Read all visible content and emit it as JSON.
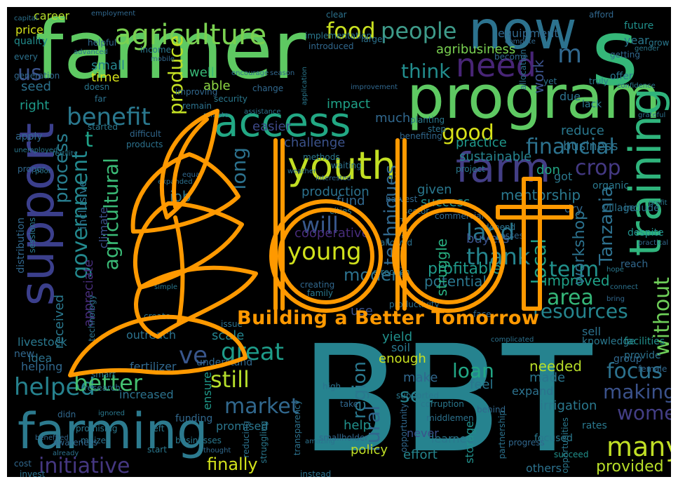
{
  "colors": {
    "background": "#000000",
    "logo_orange": "#ff9900",
    "palette": [
      "#440154",
      "#472d7b",
      "#3b528b",
      "#2c728e",
      "#21918c",
      "#28ae80",
      "#5ec962",
      "#addc30",
      "#fde725"
    ]
  },
  "logo": {
    "name": "bbt-leaf-logo",
    "wordmark": "bbt",
    "tagline": "Building a Better Tomorrow"
  },
  "words": [
    {
      "text": "farmer",
      "color": "#5ec962"
    },
    {
      "text": "s",
      "color": "#35b779"
    },
    {
      "text": "now",
      "color": "#2c728e"
    },
    {
      "text": "program",
      "color": "#5ec962"
    },
    {
      "text": "BBT",
      "color": "#26838f"
    },
    {
      "text": "farming",
      "color": "#2c7a8e"
    },
    {
      "text": "support",
      "color": "#3b3f8c"
    },
    {
      "text": "access",
      "color": "#22a884"
    },
    {
      "text": "youth",
      "color": "#c2df23"
    },
    {
      "text": "farm",
      "color": "#433e85"
    },
    {
      "text": "training",
      "color": "#2fb47c"
    },
    {
      "text": "need",
      "color": "#482576"
    },
    {
      "text": "agriculture",
      "color": "#7ad151"
    },
    {
      "text": "food",
      "color": "#c8e020"
    },
    {
      "text": "people",
      "color": "#3e9b8a"
    },
    {
      "text": "m",
      "color": "#31688e"
    },
    {
      "text": "benefit",
      "color": "#2a788e"
    },
    {
      "text": "t",
      "color": "#1fa187"
    },
    {
      "text": "good",
      "color": "#d8e219"
    },
    {
      "text": "financial",
      "color": "#2c728e"
    },
    {
      "text": "crop",
      "color": "#443983"
    },
    {
      "text": "think",
      "color": "#228d8d"
    },
    {
      "text": "us",
      "color": "#3b528b"
    },
    {
      "text": "produce",
      "color": "#c2df23"
    },
    {
      "text": "young",
      "color": "#d0e11c"
    },
    {
      "text": "thank",
      "color": "#25858e"
    },
    {
      "text": "will",
      "color": "#38588c"
    },
    {
      "text": "land",
      "color": "#2a788e"
    },
    {
      "text": "government",
      "color": "#23898e"
    },
    {
      "text": "agricultural",
      "color": "#3aba76"
    },
    {
      "text": "process",
      "color": "#287d8e"
    },
    {
      "text": "long",
      "color": "#2c728e"
    },
    {
      "text": "techniques",
      "color": "#31688e"
    },
    {
      "text": "local",
      "color": "#1fa188"
    },
    {
      "text": "Tanzania",
      "color": "#2d708e"
    },
    {
      "text": "term",
      "color": "#21918c"
    },
    {
      "text": "area",
      "color": "#35b779"
    },
    {
      "text": "resources",
      "color": "#25858e"
    },
    {
      "text": "without",
      "color": "#6ece58"
    },
    {
      "text": "ve",
      "color": "#39568c"
    },
    {
      "text": "great",
      "color": "#1e9c89"
    },
    {
      "text": "still",
      "color": "#b5de2b"
    },
    {
      "text": "helped",
      "color": "#26828e"
    },
    {
      "text": "better",
      "color": "#44bf70"
    },
    {
      "text": "market",
      "color": "#31688e"
    },
    {
      "text": "region",
      "color": "#2a788e"
    },
    {
      "text": "see",
      "color": "#26828e"
    },
    {
      "text": "loan",
      "color": "#22a785"
    },
    {
      "text": "focus",
      "color": "#2c728e"
    },
    {
      "text": "making",
      "color": "#3b528b"
    },
    {
      "text": "women",
      "color": "#433e85"
    },
    {
      "text": "rural",
      "color": "#31688e"
    },
    {
      "text": "many",
      "color": "#c0df25"
    },
    {
      "text": "initiative",
      "color": "#453781"
    },
    {
      "text": "finally",
      "color": "#d2e21b"
    },
    {
      "text": "provided",
      "color": "#b8de29"
    },
    {
      "text": "cooperative",
      "color": "#472c7a"
    },
    {
      "text": "modern",
      "color": "#2c728e"
    },
    {
      "text": "profitable",
      "color": "#1f998a"
    },
    {
      "text": "potential",
      "color": "#2a768e"
    },
    {
      "text": "improved",
      "color": "#1fa187"
    },
    {
      "text": "mentorship",
      "color": "#2a788e"
    },
    {
      "text": "needed",
      "color": "#b8de29"
    },
    {
      "text": "workshop",
      "color": "#2c728e"
    },
    {
      "text": "struggle",
      "color": "#28ae80"
    },
    {
      "text": "buyers",
      "color": "#3b528b"
    },
    {
      "text": "practice",
      "color": "#1f988b"
    },
    {
      "text": "sustainable",
      "color": "#25848e"
    },
    {
      "text": "job",
      "color": "#2a768e"
    },
    {
      "text": "production",
      "color": "#2c728e"
    },
    {
      "text": "fund",
      "color": "#31688e"
    },
    {
      "text": "given",
      "color": "#2a788e"
    },
    {
      "text": "success",
      "color": "#21918c"
    },
    {
      "text": "challenge",
      "color": "#3b528b"
    },
    {
      "text": "don",
      "color": "#22a785"
    },
    {
      "text": "business",
      "color": "#2c728e"
    },
    {
      "text": "reduce",
      "color": "#2a788e"
    },
    {
      "text": "impact",
      "color": "#1fa187"
    },
    {
      "text": "easier",
      "color": "#3e4989"
    },
    {
      "text": "much",
      "color": "#31688e"
    },
    {
      "text": "well",
      "color": "#38b977"
    },
    {
      "text": "able",
      "color": "#8fd744"
    },
    {
      "text": "time",
      "color": "#d8e219"
    },
    {
      "text": "small",
      "color": "#25858e"
    },
    {
      "text": "seed",
      "color": "#2c728e"
    },
    {
      "text": "right",
      "color": "#1e9b8a"
    },
    {
      "text": "career",
      "color": "#b5de2b"
    },
    {
      "text": "price",
      "color": "#d5e21a"
    },
    {
      "text": "quality",
      "color": "#228c8d"
    },
    {
      "text": "agribusiness",
      "color": "#7ad151"
    },
    {
      "text": "equipment",
      "color": "#31688e"
    },
    {
      "text": "year",
      "color": "#2a788e"
    },
    {
      "text": "offer",
      "color": "#2a788e"
    },
    {
      "text": "future",
      "color": "#21918c"
    },
    {
      "text": "work",
      "color": "#3b528b"
    },
    {
      "text": "due",
      "color": "#2c728e"
    },
    {
      "text": "yield",
      "color": "#21918c"
    },
    {
      "text": "use",
      "color": "#3b528b"
    },
    {
      "text": "scale",
      "color": "#25858e"
    },
    {
      "text": "outreach",
      "color": "#2c728e"
    },
    {
      "text": "understand",
      "color": "#31688e"
    },
    {
      "text": "ensure",
      "color": "#1f998a"
    },
    {
      "text": "promised",
      "color": "#2a768e"
    },
    {
      "text": "fertilizer",
      "color": "#31688e"
    },
    {
      "text": "increased",
      "color": "#2c728e"
    },
    {
      "text": "soil",
      "color": "#2a788e"
    },
    {
      "text": "enough",
      "color": "#c8e020"
    },
    {
      "text": "make",
      "color": "#31688e"
    },
    {
      "text": "feel",
      "color": "#2a768e"
    },
    {
      "text": "expand",
      "color": "#2c728e"
    },
    {
      "text": "irrigation",
      "color": "#2a788e"
    },
    {
      "text": "made",
      "color": "#2a768e"
    },
    {
      "text": "help",
      "color": "#21918c"
    },
    {
      "text": "policy",
      "color": "#c0df25"
    },
    {
      "text": "effort",
      "color": "#25858e"
    },
    {
      "text": "never",
      "color": "#3b528b"
    },
    {
      "text": "learned",
      "color": "#2a788e"
    },
    {
      "text": "others",
      "color": "#2c728e"
    },
    {
      "text": "storage",
      "color": "#21918c"
    },
    {
      "text": "livestock",
      "color": "#2a788e"
    },
    {
      "text": "helping",
      "color": "#31688e"
    },
    {
      "text": "idea",
      "color": "#2c728e"
    },
    {
      "text": "new",
      "color": "#31688e"
    },
    {
      "text": "received",
      "color": "#2a788e"
    },
    {
      "text": "climate",
      "color": "#3b528b"
    },
    {
      "text": "inclusive",
      "color": "#2c728e"
    },
    {
      "text": "apply",
      "color": "#31688e"
    },
    {
      "text": "appreciate",
      "color": "#472d7b"
    },
    {
      "text": "sell",
      "color": "#2c728e"
    },
    {
      "text": "focused",
      "color": "#2a788e"
    },
    {
      "text": "funding",
      "color": "#31688e"
    },
    {
      "text": "lack",
      "color": "#2a788e"
    },
    {
      "text": "reach",
      "color": "#31688e"
    },
    {
      "text": "include",
      "color": "#2c728e"
    },
    {
      "text": "despite",
      "color": "#21918c"
    },
    {
      "text": "got",
      "color": "#2a788e"
    },
    {
      "text": "dry",
      "color": "#31688e"
    },
    {
      "text": "organic",
      "color": "#2a788e"
    },
    {
      "text": "village",
      "color": "#2c728e"
    },
    {
      "text": "group",
      "color": "#31688e"
    },
    {
      "text": "knowledge",
      "color": "#2a788e"
    },
    {
      "text": "facilities",
      "color": "#21918c"
    },
    {
      "text": "provide",
      "color": "#2c728e"
    },
    {
      "text": "female",
      "color": "#31688e"
    },
    {
      "text": "rates",
      "color": "#2a788e"
    },
    {
      "text": "technology",
      "color": "#2c728e"
    },
    {
      "text": "distribution",
      "color": "#31688e"
    },
    {
      "text": "sessions",
      "color": "#2a788e"
    },
    {
      "text": "invest",
      "color": "#2c728e"
    },
    {
      "text": "cost",
      "color": "#31688e"
    },
    {
      "text": "start",
      "color": "#2a788e"
    },
    {
      "text": "instead",
      "color": "#2c728e"
    },
    {
      "text": "succeed",
      "color": "#21918c"
    },
    {
      "text": "afford",
      "color": "#31688e"
    },
    {
      "text": "grow",
      "color": "#2a788e"
    },
    {
      "text": "clear",
      "color": "#2c728e"
    },
    {
      "text": "introduced",
      "color": "#31688e"
    },
    {
      "text": "implementation",
      "color": "#2a788e"
    },
    {
      "text": "larger",
      "color": "#2c728e"
    },
    {
      "text": "helpful",
      "color": "#31688e"
    },
    {
      "text": "income",
      "color": "#2a788e"
    },
    {
      "text": "every",
      "color": "#2c728e"
    },
    {
      "text": "generation",
      "color": "#31688e"
    },
    {
      "text": "doesn",
      "color": "#2a788e"
    },
    {
      "text": "far",
      "color": "#2c728e"
    },
    {
      "text": "improving",
      "color": "#31688e"
    },
    {
      "text": "security",
      "color": "#2a788e"
    },
    {
      "text": "remain",
      "color": "#2c728e"
    },
    {
      "text": "change",
      "color": "#31688e"
    },
    {
      "text": "planting",
      "color": "#2a788e"
    },
    {
      "text": "step",
      "color": "#2c728e"
    },
    {
      "text": "benefiting",
      "color": "#31688e"
    },
    {
      "text": "project",
      "color": "#2a788e"
    },
    {
      "text": "allocation",
      "color": "#2c728e"
    },
    {
      "text": "getting",
      "color": "#31688e"
    },
    {
      "text": "truly",
      "color": "#2a788e"
    },
    {
      "text": "yet",
      "color": "#2c728e"
    },
    {
      "text": "become",
      "color": "#31688e"
    },
    {
      "text": "started",
      "color": "#2a788e"
    },
    {
      "text": "products",
      "color": "#2c728e"
    },
    {
      "text": "difficult",
      "color": "#31688e"
    },
    {
      "text": "methods",
      "color": "#2a788e"
    },
    {
      "text": "waiting",
      "color": "#2c728e"
    },
    {
      "text": "harvest",
      "color": "#31688e"
    },
    {
      "text": "cities",
      "color": "#2a788e"
    },
    {
      "text": "sector",
      "color": "#2c728e"
    },
    {
      "text": "commercial",
      "color": "#31688e"
    },
    {
      "text": "changed",
      "color": "#2a788e"
    },
    {
      "text": "allowed",
      "color": "#2c728e"
    },
    {
      "text": "urban",
      "color": "#31688e"
    },
    {
      "text": "direction",
      "color": "#2a788e"
    },
    {
      "text": "productivity",
      "color": "#2c728e"
    },
    {
      "text": "creating",
      "color": "#31688e"
    },
    {
      "text": "family",
      "color": "#2a788e"
    },
    {
      "text": "depend",
      "color": "#2c728e"
    },
    {
      "text": "losses",
      "color": "#31688e"
    },
    {
      "text": "create",
      "color": "#2a788e"
    },
    {
      "text": "issue",
      "color": "#2c728e"
    },
    {
      "text": "face",
      "color": "#31688e"
    },
    {
      "text": "smart",
      "color": "#2a788e"
    },
    {
      "text": "research",
      "color": "#2c728e"
    },
    {
      "text": "didn",
      "color": "#31688e"
    },
    {
      "text": "promising",
      "color": "#2a788e"
    },
    {
      "text": "maize",
      "color": "#2c728e"
    },
    {
      "text": "awareness",
      "color": "#31688e"
    },
    {
      "text": "businesses",
      "color": "#2a788e"
    },
    {
      "text": "reducing",
      "color": "#2c728e"
    },
    {
      "text": "smallholder",
      "color": "#31688e"
    },
    {
      "text": "struggling",
      "color": "#2a788e"
    },
    {
      "text": "transparency",
      "color": "#2c728e"
    },
    {
      "text": "opportunity",
      "color": "#31688e"
    },
    {
      "text": "corruption",
      "color": "#2a788e"
    },
    {
      "text": "middlemen",
      "color": "#2c728e"
    },
    {
      "text": "behind",
      "color": "#31688e"
    },
    {
      "text": "supported",
      "color": "#2a788e"
    },
    {
      "text": "partnership",
      "color": "#2c728e"
    },
    {
      "text": "take",
      "color": "#31688e"
    },
    {
      "text": "left",
      "color": "#2a788e"
    },
    {
      "text": "high",
      "color": "#2c728e"
    },
    {
      "text": "progress",
      "color": "#31688e"
    },
    {
      "text": "opportunities",
      "color": "#2a788e"
    },
    {
      "text": "education",
      "color": "#2c728e"
    },
    {
      "text": "proper",
      "color": "#31688e"
    },
    {
      "text": "unemployed",
      "color": "#2a788e"
    },
    {
      "text": "capital",
      "color": "#2c728e"
    },
    {
      "text": "employment",
      "color": "#31688e"
    },
    {
      "text": "gender",
      "color": "#2a788e"
    },
    {
      "text": "advanced",
      "color": "#2c728e"
    },
    {
      "text": "mobile",
      "color": "#31688e"
    },
    {
      "text": "application",
      "color": "#2a788e"
    },
    {
      "text": "encourage",
      "color": "#2c728e"
    },
    {
      "text": "season",
      "color": "#31688e"
    },
    {
      "text": "confidence",
      "color": "#2a788e"
    },
    {
      "text": "assistance",
      "color": "#2c728e"
    },
    {
      "text": "improvement",
      "color": "#31688e"
    },
    {
      "text": "fertility",
      "color": "#2a788e"
    },
    {
      "text": "weather",
      "color": "#2c728e"
    },
    {
      "text": "interested",
      "color": "#31688e"
    },
    {
      "text": "remote",
      "color": "#2a788e"
    },
    {
      "text": "expanded",
      "color": "#2c728e"
    },
    {
      "text": "equal",
      "color": "#31688e"
    },
    {
      "text": "poor",
      "color": "#2a788e"
    },
    {
      "text": "connect",
      "color": "#2c728e"
    },
    {
      "text": "bring",
      "color": "#31688e"
    },
    {
      "text": "simple",
      "color": "#2a788e"
    },
    {
      "text": "complicated",
      "color": "#2c728e"
    },
    {
      "text": "benefited",
      "color": "#31688e"
    },
    {
      "text": "ignored",
      "color": "#2a788e"
    },
    {
      "text": "amazing",
      "color": "#2c728e"
    },
    {
      "text": "thought",
      "color": "#31688e"
    },
    {
      "text": "hope",
      "color": "#2a788e"
    },
    {
      "text": "already",
      "color": "#2c728e"
    },
    {
      "text": "practical",
      "color": "#31688e"
    },
    {
      "text": "profit",
      "color": "#2a788e"
    },
    {
      "text": "grateful",
      "color": "#2c728e"
    },
    {
      "text": "compete",
      "color": "#31688e"
    }
  ]
}
